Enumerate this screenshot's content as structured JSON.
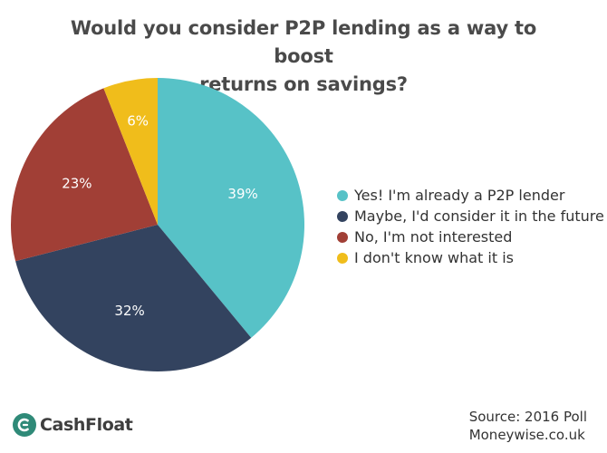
{
  "chart_data": {
    "type": "pie",
    "title_lines": [
      "Would you consider P2P lending as a way to boost",
      "returns on savings?"
    ],
    "slices": [
      {
        "label": "Yes! I'm already a P2P lender",
        "value": 39,
        "display": "39%",
        "color": "#57c2c7"
      },
      {
        "label": "Maybe, I'd consider it in the future",
        "value": 32,
        "display": "32%",
        "color": "#33435f"
      },
      {
        "label": "No, I'm not interested",
        "value": 23,
        "display": "23%",
        "color": "#a13f36"
      },
      {
        "label": "I don't know what it is",
        "value": 6,
        "display": "6%",
        "color": "#f0bd1b"
      }
    ],
    "legend_position": "right"
  },
  "brand": {
    "logo_text": "CashFloat",
    "logo_color": "#2f8a78"
  },
  "source": {
    "line1": "Source: 2016 Poll",
    "line2": "Moneywise.co.uk"
  }
}
